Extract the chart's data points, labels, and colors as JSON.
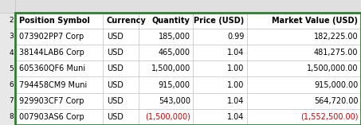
{
  "headers": [
    "Position Symbol",
    "Currency",
    "Quantity",
    "Price (USD)",
    "Market Value (USD)"
  ],
  "rows": [
    [
      "073902PP7 Corp",
      "USD",
      "185,000",
      "0.99",
      "182,225.00"
    ],
    [
      "38144LAB6 Corp",
      "USD",
      "465,000",
      "1.04",
      "481,275.00"
    ],
    [
      "605360QF6 Muni",
      "USD",
      "1,500,000",
      "1.00",
      "1,500,000.00"
    ],
    [
      "794458CM9 Muni",
      "USD",
      "915,000",
      "1.00",
      "915,000.00"
    ],
    [
      "929903CF7 Corp",
      "USD",
      "543,000",
      "1.04",
      "564,720.00"
    ],
    [
      "007903AS6 Corp",
      "USD",
      "(1,500,000)",
      "1.04",
      "(1,552,500.00)"
    ]
  ],
  "row_numbers": [
    "2",
    "3",
    "4",
    "5",
    "6",
    "7",
    "8"
  ],
  "red_row_index": 5,
  "red_cols": [
    2,
    4
  ],
  "border_color": "#2e7d32",
  "grid_color": "#c0c0c0",
  "header_font_size": 7.0,
  "row_font_size": 7.0,
  "row_num_font_size": 6.5,
  "top_strip_color": "#e0e0e0",
  "row_num_col_color": "#e8e8e8",
  "col_boundaries": [
    0.042,
    0.285,
    0.385,
    0.535,
    0.685,
    1.0
  ],
  "col_aligns": [
    "left",
    "left",
    "right",
    "right",
    "right"
  ]
}
